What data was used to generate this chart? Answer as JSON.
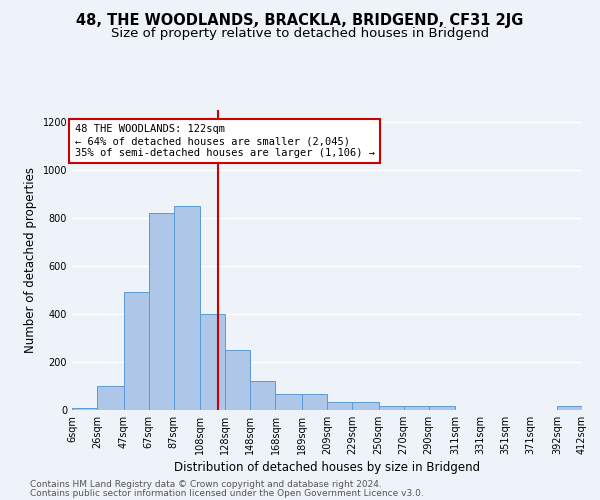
{
  "title": "48, THE WOODLANDS, BRACKLA, BRIDGEND, CF31 2JG",
  "subtitle": "Size of property relative to detached houses in Bridgend",
  "xlabel": "Distribution of detached houses by size in Bridgend",
  "ylabel": "Number of detached properties",
  "footer_line1": "Contains HM Land Registry data © Crown copyright and database right 2024.",
  "footer_line2": "Contains public sector information licensed under the Open Government Licence v3.0.",
  "bin_edges": [
    6,
    26,
    47,
    67,
    87,
    108,
    128,
    148,
    168,
    189,
    209,
    229,
    250,
    270,
    290,
    311,
    331,
    351,
    371,
    392,
    412
  ],
  "bin_labels": [
    "6sqm",
    "26sqm",
    "47sqm",
    "67sqm",
    "87sqm",
    "108sqm",
    "128sqm",
    "148sqm",
    "168sqm",
    "189sqm",
    "209sqm",
    "229sqm",
    "250sqm",
    "270sqm",
    "290sqm",
    "311sqm",
    "331sqm",
    "351sqm",
    "371sqm",
    "392sqm",
    "412sqm"
  ],
  "bar_heights": [
    10,
    100,
    490,
    820,
    850,
    400,
    250,
    120,
    65,
    65,
    35,
    35,
    15,
    15,
    15,
    0,
    0,
    0,
    0,
    15
  ],
  "bar_color": "#aec6e8",
  "bar_edge_color": "#5b9bd5",
  "property_size": 122,
  "annotation_line1": "48 THE WOODLANDS: 122sqm",
  "annotation_line2": "← 64% of detached houses are smaller (2,045)",
  "annotation_line3": "35% of semi-detached houses are larger (1,106) →",
  "annotation_box_color": "#ffffff",
  "annotation_box_edge_color": "#cc0000",
  "vline_color": "#cc0000",
  "ylim": [
    0,
    1250
  ],
  "yticks": [
    0,
    200,
    400,
    600,
    800,
    1000,
    1200
  ],
  "background_color": "#eef2f9",
  "grid_color": "#ffffff",
  "title_fontsize": 10.5,
  "subtitle_fontsize": 9.5,
  "axis_label_fontsize": 8.5,
  "tick_fontsize": 7,
  "footer_fontsize": 6.5,
  "annotation_fontsize": 7.5
}
